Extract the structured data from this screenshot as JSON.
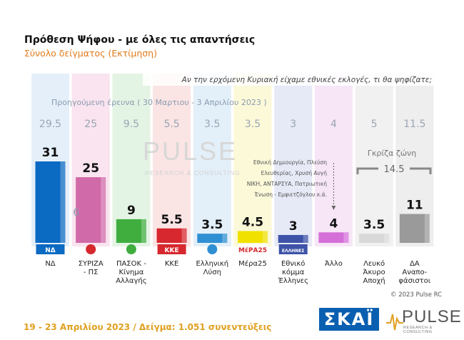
{
  "header": {
    "title": "Πρόθεση Ψήφου - με όλες τις απαντήσεις",
    "subtitle": "Σύνολο δείγματος  (Εκτίμηση)"
  },
  "chart_data": {
    "type": "bar",
    "title": "Πρόθεση Ψήφου - με όλες τις απαντήσεις",
    "subtitle": "Σύνολο δείγματος  (Εκτίμηση)",
    "question": "Αν την ερχόμενη Κυριακή είχαμε εθνικές εκλογές, τι θα ψηφίζατε;",
    "previous_label": "Προηγούμενη έρευνα  ( 30 Μαρτιου - 3 Απριλίου  2023 )",
    "categories": [
      "ΝΔ",
      "ΣΥΡΙΖΑ - ΠΣ",
      "ΠΑΣΟΚ - Κίνημα Αλλαγής",
      "ΚΚΕ",
      "Ελληνική Λύση",
      "Μέρα25",
      "Εθνικό κόμμα Έλληνες",
      "Άλλο",
      "Λευκό Άκυρο Αποχή",
      "ΔΑ Αναπο-φάσιστοι"
    ],
    "category_lines": [
      [
        "ΝΔ"
      ],
      [
        "ΣΥΡΙΖΑ",
        "- ΠΣ"
      ],
      [
        "ΠΑΣΟΚ -",
        "Κίνημα",
        "Αλλαγής"
      ],
      [
        "ΚΚΕ"
      ],
      [
        "Ελληνική",
        "Λύση"
      ],
      [
        "Μέρα25"
      ],
      [
        "Εθνικό",
        "κόμμα",
        "Έλληνες"
      ],
      [
        "Άλλο"
      ],
      [
        "Λευκό",
        "Άκυρο",
        "Αποχή"
      ],
      [
        "ΔΑ",
        "Αναπο-",
        "φάσιστοι"
      ]
    ],
    "series": [
      {
        "name": "current",
        "values": [
          31,
          25,
          9,
          5.5,
          3.5,
          4.5,
          3,
          4,
          3.5,
          11
        ]
      },
      {
        "name": "previous",
        "values": [
          29.5,
          25,
          9.5,
          5.5,
          3.5,
          3.5,
          3,
          4,
          5,
          11.5
        ]
      }
    ],
    "value_labels": [
      "31",
      "25",
      "9",
      "5.5",
      "3.5",
      "4.5",
      "3",
      "4",
      "3.5",
      "11"
    ],
    "previous_labels": [
      "29.5",
      "25",
      "9.5",
      "5.5",
      "3.5",
      "3.5",
      "3",
      "4",
      "5",
      "11.5"
    ],
    "colors": [
      "#0b6ac2",
      "#d16aa8",
      "#3fae3f",
      "#d6282e",
      "#2f8fd3",
      "#f1e100",
      "#3e52a8",
      "#d56fd8",
      "#d8d8d8",
      "#9a9a9a"
    ],
    "column_tints": [
      "#e4effa",
      "#f9e4ef",
      "#e4f4e4",
      "#fbe4e4",
      "#e3eff9",
      "#fbf9d8",
      "#e6e9f6",
      "#f6e6f6",
      "#f1f1f1",
      "#eeeeee"
    ],
    "gap_annotation": {
      "index": 1,
      "text": "6"
    },
    "other_annotation": [
      "Εθνική Δημιουργία, Πλεύση",
      "Ελευθερίας, Χρυσή Αυγή",
      "ΝΙΚΗ, ΑΝΤΑΡΣΥΑ, Πατριωτική",
      "Ένωση - Εμφιετζόγλου  κ.ά."
    ],
    "grey_zone": {
      "label": "Γκρίζα ζώνη",
      "value": "14.5"
    },
    "logos": [
      "ΝΔ",
      "",
      "",
      "ΚΚΕ",
      "",
      "ΜέΡΑ25",
      "ΕΛΛΗΝΕΣ",
      "",
      "",
      ""
    ],
    "watermark": {
      "word": "PULSE",
      "sub": "RESEARCH & CONSULTING"
    },
    "ylim": [
      0,
      35
    ],
    "grid": false,
    "legend": "none"
  },
  "footer": {
    "date_sample": "19 - 23  Απριλίου  2023  /  Δείγμα:  1.051 συνεντεύξεις",
    "copyright": "© 2023 Pulse RC",
    "brand_skai": "ΣΚΑΪ",
    "brand_pulse": "PULSE",
    "brand_pulse_sub": "RESEARCH & CONSULTING"
  }
}
